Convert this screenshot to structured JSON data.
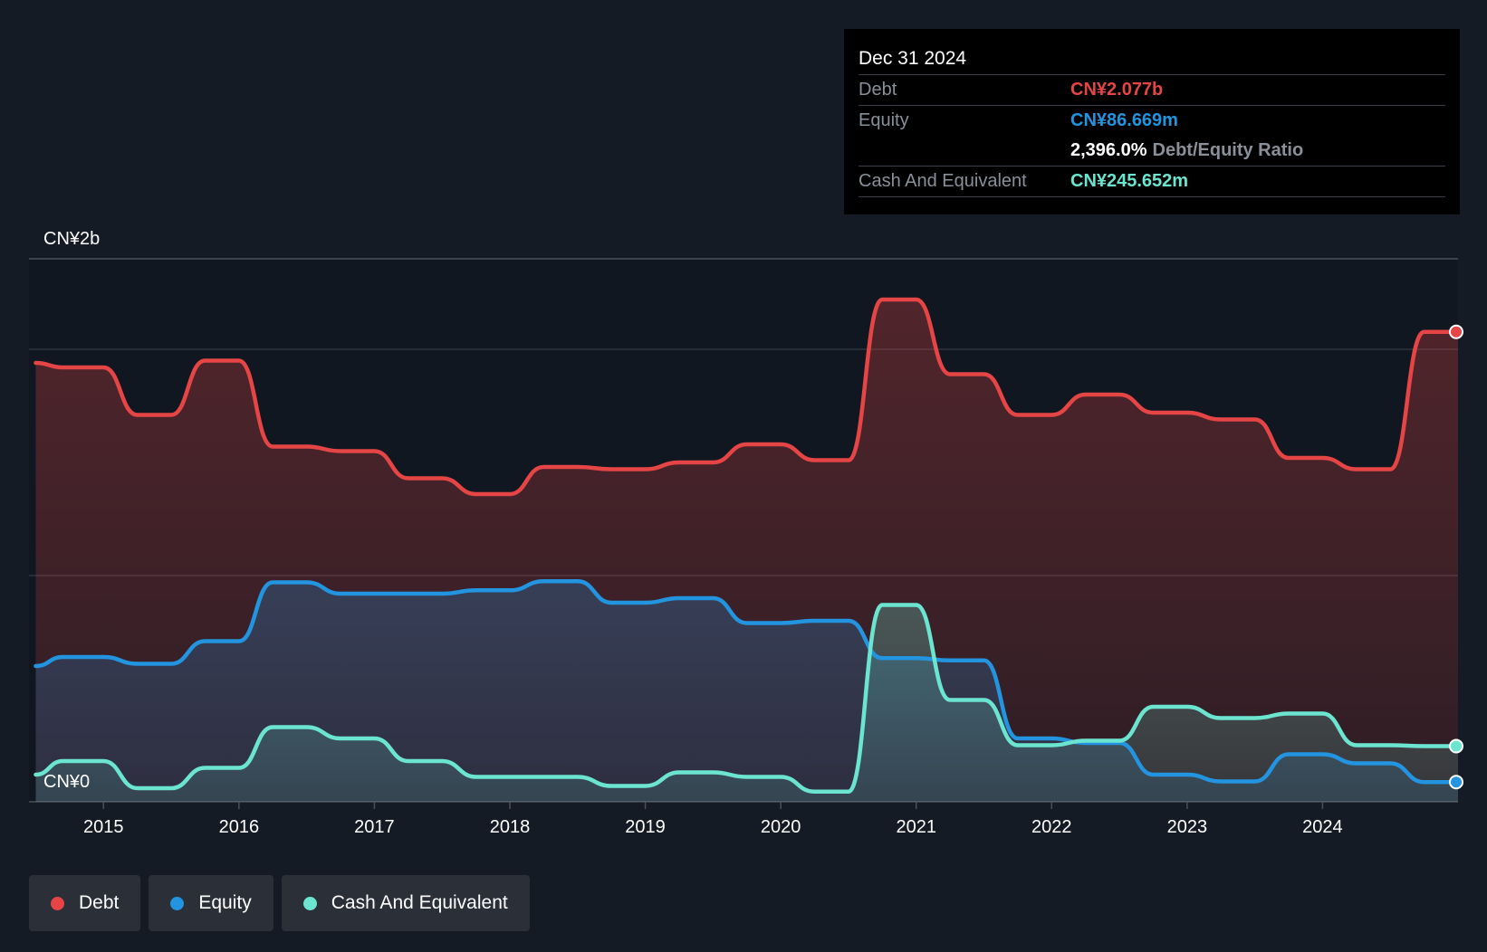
{
  "tooltip": {
    "date": "Dec 31 2024",
    "debt_label": "Debt",
    "debt_value": "CN¥2.077b",
    "equity_label": "Equity",
    "equity_value": "CN¥86.669m",
    "ratio_value": "2,396.0%",
    "ratio_label": "Debt/Equity Ratio",
    "cash_label": "Cash And Equivalent",
    "cash_value": "CN¥245.652m"
  },
  "legend": [
    {
      "label": "Debt",
      "color": "#e64545"
    },
    {
      "label": "Equity",
      "color": "#2394df"
    },
    {
      "label": "Cash And Equivalent",
      "color": "#6ce5d0"
    }
  ],
  "chart_data": {
    "type": "area",
    "currency": "CN¥",
    "y_unit": "billions",
    "ylim": [
      0,
      2.4
    ],
    "y_tick_labels": [
      {
        "value": 2.4,
        "label": "CN¥2b"
      },
      {
        "value": 0,
        "label": "CN¥0"
      }
    ],
    "gridlines": [
      2.4,
      2.0,
      1.0,
      0
    ],
    "x_ticks": [
      "2015",
      "2016",
      "2017",
      "2018",
      "2019",
      "2020",
      "2021",
      "2022",
      "2023",
      "2024"
    ],
    "xlim": [
      2014.45,
      2025.0
    ],
    "series": [
      {
        "name": "Debt",
        "color": "#e64545",
        "points": [
          [
            2014.5,
            1.94
          ],
          [
            2014.7,
            1.92
          ],
          [
            2014.9,
            1.92
          ],
          [
            2015.0,
            1.92
          ],
          [
            2015.25,
            1.71
          ],
          [
            2015.5,
            1.71
          ],
          [
            2015.75,
            1.95
          ],
          [
            2016.0,
            1.95
          ],
          [
            2016.25,
            1.57
          ],
          [
            2016.5,
            1.57
          ],
          [
            2016.75,
            1.55
          ],
          [
            2017.0,
            1.55
          ],
          [
            2017.25,
            1.43
          ],
          [
            2017.5,
            1.43
          ],
          [
            2017.75,
            1.36
          ],
          [
            2018.0,
            1.36
          ],
          [
            2018.25,
            1.48
          ],
          [
            2018.5,
            1.48
          ],
          [
            2018.75,
            1.47
          ],
          [
            2019.0,
            1.47
          ],
          [
            2019.25,
            1.5
          ],
          [
            2019.5,
            1.5
          ],
          [
            2019.75,
            1.58
          ],
          [
            2020.0,
            1.58
          ],
          [
            2020.25,
            1.51
          ],
          [
            2020.5,
            1.51
          ],
          [
            2020.75,
            2.22
          ],
          [
            2021.0,
            2.22
          ],
          [
            2021.25,
            1.89
          ],
          [
            2021.5,
            1.89
          ],
          [
            2021.75,
            1.71
          ],
          [
            2022.0,
            1.71
          ],
          [
            2022.25,
            1.8
          ],
          [
            2022.5,
            1.8
          ],
          [
            2022.75,
            1.72
          ],
          [
            2023.0,
            1.72
          ],
          [
            2023.25,
            1.69
          ],
          [
            2023.5,
            1.69
          ],
          [
            2023.75,
            1.52
          ],
          [
            2024.0,
            1.52
          ],
          [
            2024.25,
            1.47
          ],
          [
            2024.5,
            1.47
          ],
          [
            2024.75,
            2.077
          ],
          [
            2025.0,
            2.077
          ]
        ]
      },
      {
        "name": "Equity",
        "color": "#2394df",
        "points": [
          [
            2014.5,
            0.6
          ],
          [
            2014.7,
            0.64
          ],
          [
            2014.9,
            0.64
          ],
          [
            2015.0,
            0.64
          ],
          [
            2015.25,
            0.61
          ],
          [
            2015.5,
            0.61
          ],
          [
            2015.75,
            0.71
          ],
          [
            2016.0,
            0.71
          ],
          [
            2016.25,
            0.97
          ],
          [
            2016.5,
            0.97
          ],
          [
            2016.75,
            0.92
          ],
          [
            2017.0,
            0.92
          ],
          [
            2017.25,
            0.92
          ],
          [
            2017.5,
            0.92
          ],
          [
            2017.75,
            0.935
          ],
          [
            2018.0,
            0.935
          ],
          [
            2018.25,
            0.975
          ],
          [
            2018.5,
            0.975
          ],
          [
            2018.75,
            0.88
          ],
          [
            2019.0,
            0.88
          ],
          [
            2019.25,
            0.9
          ],
          [
            2019.5,
            0.9
          ],
          [
            2019.75,
            0.79
          ],
          [
            2020.0,
            0.79
          ],
          [
            2020.25,
            0.8
          ],
          [
            2020.5,
            0.8
          ],
          [
            2020.75,
            0.635
          ],
          [
            2021.0,
            0.635
          ],
          [
            2021.25,
            0.625
          ],
          [
            2021.5,
            0.625
          ],
          [
            2021.75,
            0.28
          ],
          [
            2022.0,
            0.28
          ],
          [
            2022.25,
            0.26
          ],
          [
            2022.5,
            0.26
          ],
          [
            2022.75,
            0.12
          ],
          [
            2023.0,
            0.12
          ],
          [
            2023.25,
            0.09
          ],
          [
            2023.5,
            0.09
          ],
          [
            2023.75,
            0.21
          ],
          [
            2024.0,
            0.21
          ],
          [
            2024.25,
            0.17
          ],
          [
            2024.5,
            0.17
          ],
          [
            2024.75,
            0.087
          ],
          [
            2025.0,
            0.087
          ]
        ]
      },
      {
        "name": "Cash And Equivalent",
        "color": "#6ce5d0",
        "points": [
          [
            2014.5,
            0.12
          ],
          [
            2014.7,
            0.18
          ],
          [
            2014.9,
            0.18
          ],
          [
            2015.0,
            0.18
          ],
          [
            2015.25,
            0.06
          ],
          [
            2015.5,
            0.06
          ],
          [
            2015.75,
            0.15
          ],
          [
            2016.0,
            0.15
          ],
          [
            2016.25,
            0.33
          ],
          [
            2016.5,
            0.33
          ],
          [
            2016.75,
            0.28
          ],
          [
            2017.0,
            0.28
          ],
          [
            2017.25,
            0.18
          ],
          [
            2017.5,
            0.18
          ],
          [
            2017.75,
            0.11
          ],
          [
            2018.0,
            0.11
          ],
          [
            2018.25,
            0.11
          ],
          [
            2018.5,
            0.11
          ],
          [
            2018.75,
            0.07
          ],
          [
            2019.0,
            0.07
          ],
          [
            2019.25,
            0.13
          ],
          [
            2019.5,
            0.13
          ],
          [
            2019.75,
            0.11
          ],
          [
            2020.0,
            0.11
          ],
          [
            2020.25,
            0.045
          ],
          [
            2020.5,
            0.045
          ],
          [
            2020.75,
            0.87
          ],
          [
            2021.0,
            0.87
          ],
          [
            2021.25,
            0.45
          ],
          [
            2021.5,
            0.45
          ],
          [
            2021.75,
            0.25
          ],
          [
            2022.0,
            0.25
          ],
          [
            2022.25,
            0.27
          ],
          [
            2022.5,
            0.27
          ],
          [
            2022.75,
            0.42
          ],
          [
            2023.0,
            0.42
          ],
          [
            2023.25,
            0.37
          ],
          [
            2023.5,
            0.37
          ],
          [
            2023.75,
            0.39
          ],
          [
            2024.0,
            0.39
          ],
          [
            2024.25,
            0.25
          ],
          [
            2024.5,
            0.25
          ],
          [
            2024.75,
            0.246
          ],
          [
            2025.0,
            0.246
          ]
        ]
      }
    ]
  }
}
